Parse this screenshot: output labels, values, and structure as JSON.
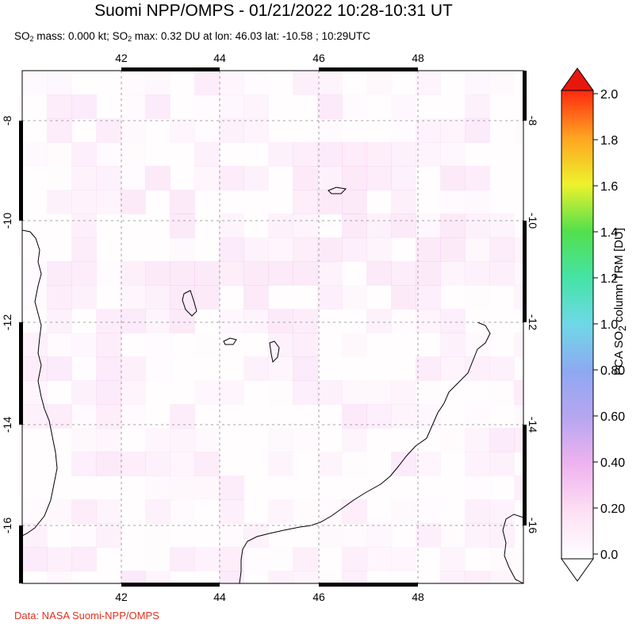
{
  "title": "Suomi NPP/OMPS - 01/21/2022 10:28-10:31 UT",
  "subtitle": {
    "part1": "SO",
    "sub1": "2",
    "part2": " mass: 0.000 kt; SO",
    "sub2": "2",
    "part3": " max: 0.32 DU at lon: 46.03 lat: -10.58 ; 10:29UTC"
  },
  "credit": "Data: NASA Suomi-NPP/OMPS",
  "map": {
    "lon_ticks": [
      "42",
      "44",
      "46",
      "48"
    ],
    "lat_ticks": [
      "-8",
      "-10",
      "-12",
      "-14",
      "-16"
    ],
    "lon_range": [
      40.0,
      50.0
    ],
    "lat_range": [
      -17.0,
      -6.0
    ],
    "grid": true
  },
  "colorbar": {
    "title_a": "PCA SO",
    "title_sub": "2",
    "title_b": " column TRM [DU]",
    "ticks": [
      "2.0",
      "1.8",
      "1.6",
      "1.4",
      "1.2",
      "1.0",
      "0.80",
      "0.60",
      "0.40",
      "0.20",
      "0.0"
    ],
    "range": [
      0.0,
      2.0
    ]
  }
}
